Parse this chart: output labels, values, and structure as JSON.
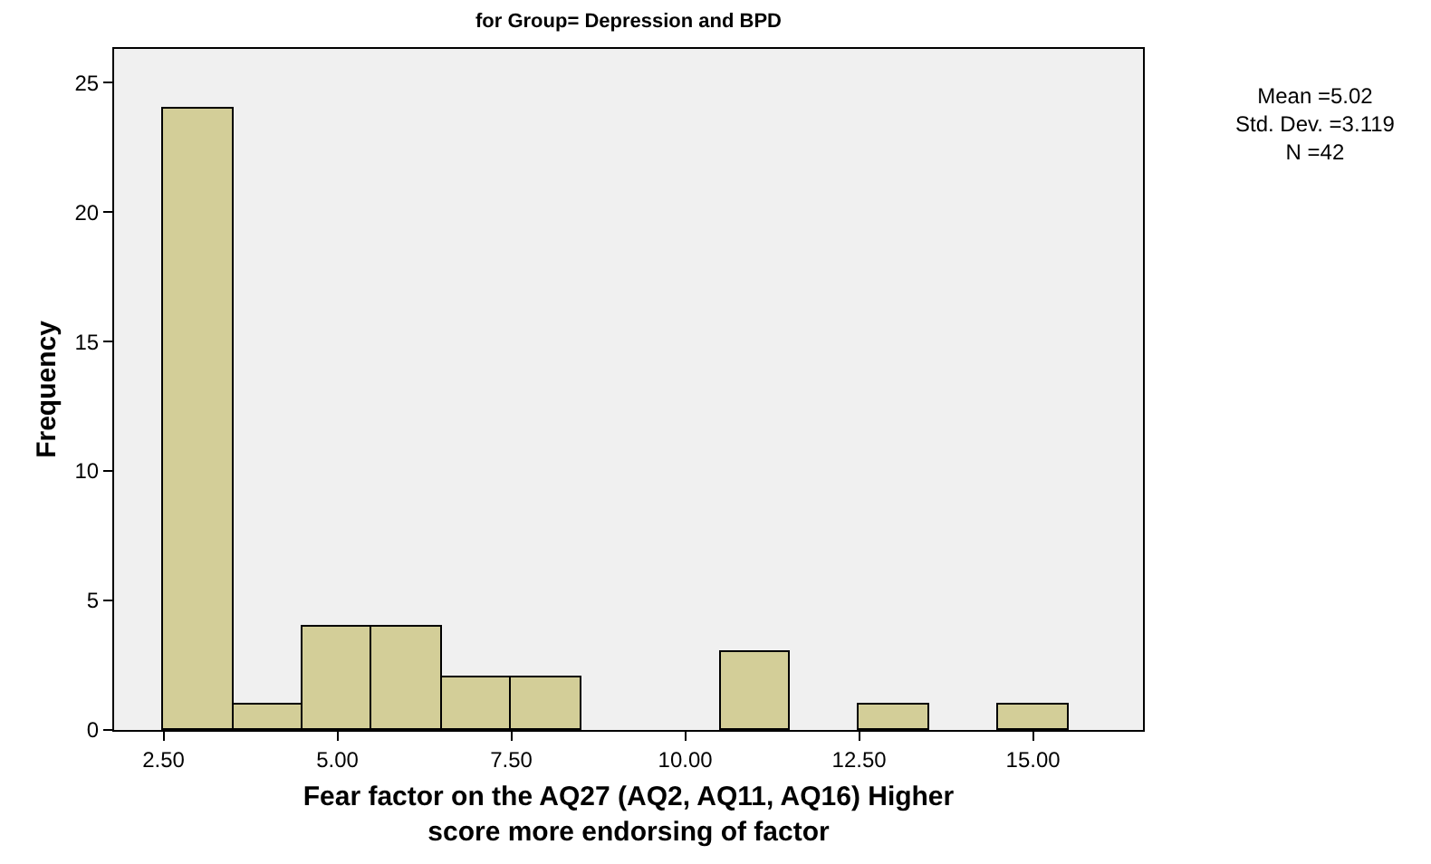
{
  "chart_data": {
    "type": "histogram",
    "title": "for Group= Depression and BPD",
    "xlabel": "Fear factor on the AQ27 (AQ2, AQ11, AQ16) Higher score more endorsing of factor",
    "ylabel": "Frequency",
    "bins": [
      2.5,
      3.5,
      4.5,
      5.5,
      6.5,
      7.5,
      8.5,
      9.5,
      10.5,
      11.5,
      12.5,
      13.5,
      14.5,
      15.5
    ],
    "values": [
      24,
      1,
      4,
      4,
      2,
      2,
      0,
      0,
      3,
      0,
      1,
      0,
      1
    ],
    "color": "#d3ce98",
    "xlim": [
      1.79,
      16.58
    ],
    "xticks": [
      {
        "value": 2.5,
        "label": "2.50"
      },
      {
        "value": 5,
        "label": "5.00"
      },
      {
        "value": 7.5,
        "label": "7.50"
      },
      {
        "value": 10,
        "label": "10.00"
      },
      {
        "value": 12.5,
        "label": "12.50"
      },
      {
        "value": 15,
        "label": "15.00"
      }
    ],
    "ylim": [
      0,
      26.3
    ],
    "yticks": [
      0,
      5,
      10,
      15,
      20,
      25
    ],
    "grid": false,
    "annotations": [
      "Mean =5.02",
      "Std. Dev. =3.119",
      "N =42"
    ]
  }
}
